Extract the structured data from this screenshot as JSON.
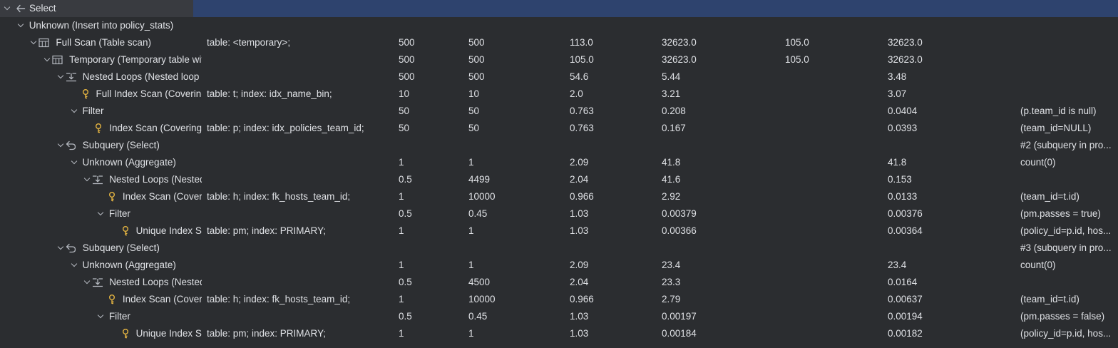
{
  "plan": {
    "root": {
      "label": "Select"
    },
    "rows": [
      {
        "label": "Unknown (Insert into policy_stats)",
        "icon": "",
        "details": "",
        "c2": "",
        "c3": "",
        "c4": "",
        "c5": "",
        "c6": "",
        "c7": "",
        "c8": ""
      },
      {
        "label": "Full Scan (Table scan)",
        "icon": "table-icon",
        "details": "table: <temporary>;",
        "c2": "500",
        "c3": "500",
        "c4": "113.0",
        "c5": "32623.0",
        "c6": "105.0",
        "c7": "32623.0",
        "c8": ""
      },
      {
        "label": "Temporary (Temporary table with deduplication)",
        "icon": "table-icon",
        "details": "",
        "c2": "500",
        "c3": "500",
        "c4": "105.0",
        "c5": "32623.0",
        "c6": "105.0",
        "c7": "32623.0",
        "c8": ""
      },
      {
        "label": "Nested Loops (Nested loop inner join)",
        "icon": "nested-loops-icon",
        "details": "",
        "c2": "500",
        "c3": "500",
        "c4": "54.6",
        "c5": "5.44",
        "c6": "",
        "c7": "3.48",
        "c8": ""
      },
      {
        "label": "Full Index Scan (Covering index scan)",
        "icon": "key-icon",
        "details": "table: t; index: idx_name_bin;",
        "c2": "10",
        "c3": "10",
        "c4": "2.0",
        "c5": "3.21",
        "c6": "",
        "c7": "3.07",
        "c8": ""
      },
      {
        "label": "Filter",
        "icon": "",
        "details": "",
        "c2": "50",
        "c3": "50",
        "c4": "0.763",
        "c5": "0.208",
        "c6": "",
        "c7": "0.0404",
        "c8": "(p.team_id is null)"
      },
      {
        "label": "Index Scan (Covering index lookup)",
        "icon": "key-icon",
        "details": "table: p; index: idx_policies_team_id;",
        "c2": "50",
        "c3": "50",
        "c4": "0.763",
        "c5": "0.167",
        "c6": "",
        "c7": "0.0393",
        "c8": "(team_id=NULL)"
      },
      {
        "label": "Subquery (Select)",
        "icon": "subquery-icon",
        "details": "",
        "c2": "",
        "c3": "",
        "c4": "",
        "c5": "",
        "c6": "",
        "c7": "",
        "c8": "#2 (subquery in pro..."
      },
      {
        "label": "Unknown (Aggregate)",
        "icon": "",
        "details": "",
        "c2": "1",
        "c3": "1",
        "c4": "2.09",
        "c5": "41.8",
        "c6": "",
        "c7": "41.8",
        "c8": "count(0)"
      },
      {
        "label": "Nested Loops (Nested loop inner join)",
        "icon": "nested-loops-icon",
        "details": "",
        "c2": "0.5",
        "c3": "4499",
        "c4": "2.04",
        "c5": "41.6",
        "c6": "",
        "c7": "0.153",
        "c8": ""
      },
      {
        "label": "Index Scan (Covering index lookup)",
        "icon": "key-icon",
        "details": "table: h; index: fk_hosts_team_id;",
        "c2": "1",
        "c3": "10000",
        "c4": "0.966",
        "c5": "2.92",
        "c6": "",
        "c7": "0.0133",
        "c8": "(team_id=t.id)"
      },
      {
        "label": "Filter",
        "icon": "",
        "details": "",
        "c2": "0.5",
        "c3": "0.45",
        "c4": "1.03",
        "c5": "0.00379",
        "c6": "",
        "c7": "0.00376",
        "c8": "(pm.passes = true)"
      },
      {
        "label": "Unique Index Scan (Single-row covering index lookup)",
        "icon": "key-icon",
        "details": "table: pm; index: PRIMARY;",
        "c2": "1",
        "c3": "1",
        "c4": "1.03",
        "c5": "0.00366",
        "c6": "",
        "c7": "0.00364",
        "c8": "(policy_id=p.id, hos..."
      },
      {
        "label": "Subquery (Select)",
        "icon": "subquery-icon",
        "details": "",
        "c2": "",
        "c3": "",
        "c4": "",
        "c5": "",
        "c6": "",
        "c7": "",
        "c8": "#3 (subquery in pro..."
      },
      {
        "label": "Unknown (Aggregate)",
        "icon": "",
        "details": "",
        "c2": "1",
        "c3": "1",
        "c4": "2.09",
        "c5": "23.4",
        "c6": "",
        "c7": "23.4",
        "c8": "count(0)"
      },
      {
        "label": "Nested Loops (Nested loop inner join)",
        "icon": "nested-loops-icon",
        "details": "",
        "c2": "0.5",
        "c3": "4500",
        "c4": "2.04",
        "c5": "23.3",
        "c6": "",
        "c7": "0.0164",
        "c8": ""
      },
      {
        "label": "Index Scan (Covering index lookup)",
        "icon": "key-icon",
        "details": "table: h; index: fk_hosts_team_id;",
        "c2": "1",
        "c3": "10000",
        "c4": "0.966",
        "c5": "2.79",
        "c6": "",
        "c7": "0.00637",
        "c8": "(team_id=t.id)"
      },
      {
        "label": "Filter",
        "icon": "",
        "details": "",
        "c2": "0.5",
        "c3": "0.45",
        "c4": "1.03",
        "c5": "0.00197",
        "c6": "",
        "c7": "0.00194",
        "c8": "(pm.passes = false)"
      },
      {
        "label": "Unique Index Scan (Single-row covering index lookup)",
        "icon": "key-icon",
        "details": "table: pm; index: PRIMARY;",
        "c2": "1",
        "c3": "1",
        "c4": "1.03",
        "c5": "0.00184",
        "c6": "",
        "c7": "0.00182",
        "c8": "(policy_id=p.id, hos..."
      }
    ]
  },
  "colors": {
    "background": "#2b2d30",
    "selected_row": "#2e436e",
    "text": "#dfe1e5",
    "key_icon": "#e3b341",
    "icon_gray": "#b4b8bf"
  }
}
